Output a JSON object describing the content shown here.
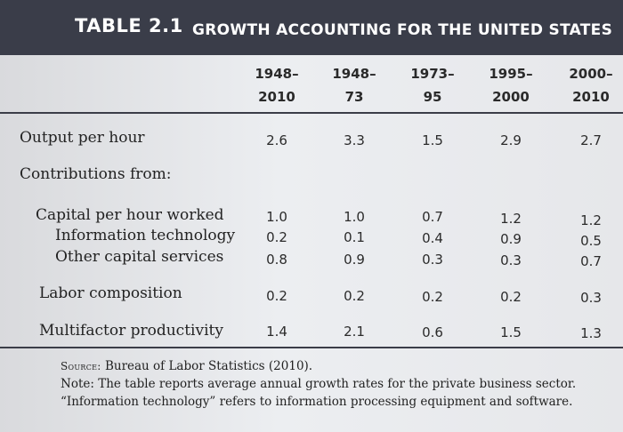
{
  "table": {
    "label": "TABLE 2.1",
    "title": "GROWTH ACCOUNTING FOR THE UNITED STATES",
    "columns": [
      {
        "line1": "1948–",
        "line2": "2010"
      },
      {
        "line1": "1948–",
        "line2": "73"
      },
      {
        "line1": "1973–",
        "line2": "95"
      },
      {
        "line1": "1995–",
        "line2": "2000"
      },
      {
        "line1": "2000–",
        "line2": "2010"
      }
    ],
    "rows": [
      {
        "label": "Output per hour",
        "values": [
          "2.6",
          "3.3",
          "1.5",
          "2.9",
          "2.7"
        ]
      },
      {
        "label": "Contributions from:",
        "values": []
      },
      {
        "label": "Capital per hour worked",
        "values": [
          "1.0",
          "1.0",
          "0.7",
          "1.2",
          "1.2"
        ]
      },
      {
        "label": "Information technology",
        "values": [
          "0.2",
          "0.1",
          "0.4",
          "0.9",
          "0.5"
        ]
      },
      {
        "label": "Other capital services",
        "values": [
          "0.8",
          "0.9",
          "0.3",
          "0.3",
          "0.7"
        ]
      },
      {
        "label": "Labor composition",
        "values": [
          "0.2",
          "0.2",
          "0.2",
          "0.2",
          "0.3"
        ]
      },
      {
        "label": "Multifactor productivity",
        "values": [
          "1.4",
          "2.1",
          "0.6",
          "1.5",
          "1.3"
        ]
      }
    ]
  },
  "notes": {
    "source_label": "Source:",
    "source_text": "Bureau of Labor Statistics (2010).",
    "note_line1": "Note: The table reports average annual growth rates for the private business sector.",
    "note_line2": "“Information technology” refers to information processing equipment and software."
  }
}
